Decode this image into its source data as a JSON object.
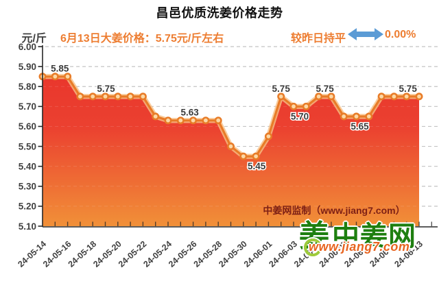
{
  "header": {
    "price_note": "6月13日大姜价格：5.75元/斤左右",
    "trend_label": "较昨日持平",
    "trend_value": "0.00%",
    "accent_orange": "#ED7D31",
    "arrow_blue": "#5B9BD5"
  },
  "watermark": "中姜网监制（www.jiang7.com）",
  "logo": {
    "mark": "姜",
    "name": "中姜网",
    "url": "www.jiang7.com",
    "green": "#1E7F10",
    "orange": "#E8641F"
  },
  "chart_data": {
    "type": "area",
    "title": "昌邑优质洗姜价格走势",
    "xlabel": "",
    "ylabel": "元/斤",
    "ylim": [
      5.1,
      6.0
    ],
    "ytick_step": 0.1,
    "grid": "horizontal-dashed",
    "legend": "none",
    "x_label_every": 2,
    "x_label_rotation": -42,
    "x": [
      "24-05-14",
      "24-05-15",
      "24-05-16",
      "24-05-17",
      "24-05-18",
      "24-05-19",
      "24-05-20",
      "24-05-21",
      "24-05-22",
      "24-05-23",
      "24-05-24",
      "24-05-25",
      "24-05-26",
      "24-05-27",
      "24-05-28",
      "24-05-29",
      "24-05-30",
      "24-05-31",
      "24-06-01",
      "24-06-02",
      "24-06-03",
      "24-06-04",
      "24-06-05",
      "24-06-06",
      "24-06-07",
      "24-06-08",
      "24-06-09",
      "24-06-10",
      "24-06-11",
      "24-06-12",
      "24-06-13"
    ],
    "values": [
      5.85,
      5.85,
      5.85,
      5.75,
      5.75,
      5.75,
      5.75,
      5.75,
      5.75,
      5.65,
      5.63,
      5.63,
      5.63,
      5.63,
      5.63,
      5.5,
      5.45,
      5.45,
      5.55,
      5.75,
      5.7,
      5.7,
      5.75,
      5.75,
      5.65,
      5.65,
      5.65,
      5.75,
      5.75,
      5.75,
      5.75
    ],
    "point_labels": [
      {
        "index": 1,
        "text": "5.85",
        "side": "above",
        "dx": 7
      },
      {
        "index": 5,
        "text": "5.75",
        "side": "above",
        "dx": 1
      },
      {
        "index": 12,
        "text": "5.63",
        "side": "above",
        "dx": -5
      },
      {
        "index": 17,
        "text": "5.45",
        "side": "below",
        "dx": 1
      },
      {
        "index": 19,
        "text": "5.75",
        "side": "above",
        "dx": 0
      },
      {
        "index": 20,
        "text": "5.70",
        "side": "below",
        "dx": 9
      },
      {
        "index": 22,
        "text": "5.75",
        "side": "above",
        "dx": 9
      },
      {
        "index": 25,
        "text": "5.65",
        "side": "below",
        "dx": 5
      },
      {
        "index": 29,
        "text": "5.75",
        "side": "above",
        "dx": 2
      }
    ],
    "colors": {
      "area_top": "#E8302A",
      "area_mid": "#EB4130",
      "area_bottom": "#F19038",
      "line": "#E87C28",
      "halo": "#F8C186",
      "marker_center": "#FBD8A6",
      "grid": "#C3C3C3",
      "axis": "#262626",
      "tick_label": "#3F3F3F",
      "point_label": "#3A3A3A",
      "watermark": "#7D2015"
    }
  }
}
